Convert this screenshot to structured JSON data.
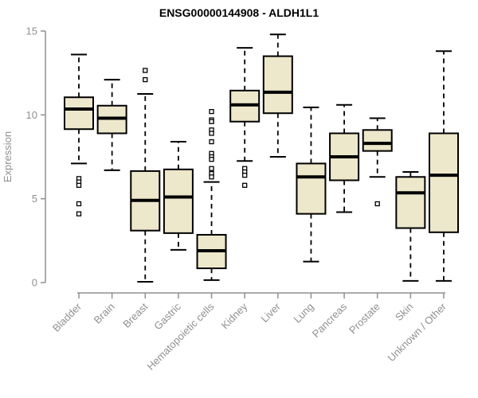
{
  "page": {
    "background": "#ffffff"
  },
  "chart_data": {
    "type": "boxplot",
    "title": "ENSG00000144908 - ALDH1L1",
    "xlabel": "",
    "ylabel": "Expression",
    "ylim": [
      0,
      15
    ],
    "yticks": [
      0,
      5,
      10,
      15
    ],
    "grid": false,
    "legend": "none",
    "colors": {
      "box_fill": "#EDE7CB",
      "box_stroke": "#000000",
      "median": "#000000",
      "axis": "#909090",
      "tick_text": "#909090",
      "title_text": "#000000",
      "outlier_stroke": "#000000",
      "outlier_fill": "#ffffff"
    },
    "categories": [
      "Bladder",
      "Brain",
      "Breast",
      "Gastric",
      "Hematopoietic cells",
      "Kidney",
      "Liver",
      "Lung",
      "Pancreas",
      "Prostate",
      "Skin",
      "Unknown / Other"
    ],
    "series": [
      {
        "category": "Bladder",
        "whisker_low": 7.1,
        "q1": 9.15,
        "median": 10.35,
        "q3": 11.05,
        "whisker_high": 13.6,
        "outliers": [
          6.2,
          6.0,
          5.8,
          4.7,
          4.1
        ]
      },
      {
        "category": "Brain",
        "whisker_low": 6.7,
        "q1": 8.9,
        "median": 9.8,
        "q3": 10.55,
        "whisker_high": 12.1,
        "outliers": []
      },
      {
        "category": "Breast",
        "whisker_low": 0.05,
        "q1": 3.1,
        "median": 4.9,
        "q3": 6.65,
        "whisker_high": 11.25,
        "outliers": [
          12.65,
          12.1
        ]
      },
      {
        "category": "Gastric",
        "whisker_low": 1.95,
        "q1": 2.95,
        "median": 5.1,
        "q3": 6.75,
        "whisker_high": 8.4,
        "outliers": []
      },
      {
        "category": "Hematopoietic cells",
        "whisker_low": 0.15,
        "q1": 0.85,
        "median": 1.9,
        "q3": 2.85,
        "whisker_high": 6.0,
        "outliers": [
          10.2,
          9.7,
          9.6,
          9.1,
          8.9,
          8.4,
          7.7,
          7.5,
          7.35,
          6.8,
          6.5,
          6.3
        ]
      },
      {
        "category": "Kidney",
        "whisker_low": 7.25,
        "q1": 9.6,
        "median": 10.6,
        "q3": 11.45,
        "whisker_high": 14.0,
        "outliers": [
          6.8,
          6.6,
          6.4,
          5.8
        ]
      },
      {
        "category": "Liver",
        "whisker_low": 7.5,
        "q1": 10.1,
        "median": 11.35,
        "q3": 13.5,
        "whisker_high": 14.8,
        "outliers": []
      },
      {
        "category": "Lung",
        "whisker_low": 1.25,
        "q1": 4.1,
        "median": 6.3,
        "q3": 7.1,
        "whisker_high": 10.45,
        "outliers": []
      },
      {
        "category": "Pancreas",
        "whisker_low": 4.2,
        "q1": 6.1,
        "median": 7.5,
        "q3": 8.9,
        "whisker_high": 10.6,
        "outliers": []
      },
      {
        "category": "Prostate",
        "whisker_low": 6.3,
        "q1": 7.85,
        "median": 8.3,
        "q3": 9.1,
        "whisker_high": 9.8,
        "outliers": [
          4.7
        ]
      },
      {
        "category": "Skin",
        "whisker_low": 0.1,
        "q1": 3.25,
        "median": 5.35,
        "q3": 6.3,
        "whisker_high": 6.6,
        "outliers": []
      },
      {
        "category": "Unknown / Other",
        "whisker_low": 0.1,
        "q1": 3.0,
        "median": 6.4,
        "q3": 8.9,
        "whisker_high": 13.8,
        "outliers": []
      }
    ]
  }
}
